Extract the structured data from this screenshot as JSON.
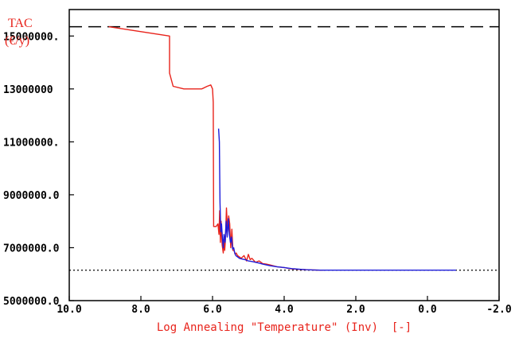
{
  "chart_data": {
    "type": "line",
    "title": "",
    "ylabel_line1": "TAC",
    "ylabel_line2": "(€/y)",
    "xlabel": "Log Annealing \"Temperature\" (Inv)  [-]",
    "xlim": [
      10.0,
      -2.0
    ],
    "ylim": [
      5000000,
      16000000
    ],
    "x_ticks": [
      {
        "value": 10.0,
        "label": "10.0"
      },
      {
        "value": 8.0,
        "label": "8.0"
      },
      {
        "value": 6.0,
        "label": "6.0"
      },
      {
        "value": 4.0,
        "label": "4.0"
      },
      {
        "value": 2.0,
        "label": "2.0"
      },
      {
        "value": 0.0,
        "label": "0.0"
      },
      {
        "value": -2.0,
        "label": "-2.0"
      }
    ],
    "y_ticks": [
      {
        "value": 5000000,
        "label": "5000000.0"
      },
      {
        "value": 7000000,
        "label": "7000000.0"
      },
      {
        "value": 9000000,
        "label": "9000000.0"
      },
      {
        "value": 11000000,
        "label": "11000000."
      },
      {
        "value": 13000000,
        "label": "13000000"
      },
      {
        "value": 15000000,
        "label": "15000000."
      }
    ],
    "reference_lines": [
      {
        "style": "long-dash",
        "y": 15350000
      },
      {
        "style": "dotted",
        "y": 6150000
      }
    ],
    "series": [
      {
        "color": "#e8231b",
        "x": [
          8.9,
          7.2,
          7.2,
          7.1,
          6.8,
          6.3,
          6.15,
          6.05,
          6.0,
          5.98,
          5.97,
          5.95,
          5.9,
          5.85,
          5.82,
          5.8,
          5.78,
          5.76,
          5.73,
          5.7,
          5.68,
          5.66,
          5.64,
          5.61,
          5.58,
          5.55,
          5.52,
          5.49,
          5.46,
          5.43,
          5.4,
          5.37,
          5.34,
          5.3,
          5.25,
          5.2,
          5.12,
          5.05,
          5.0,
          4.95,
          4.9,
          4.8,
          4.7,
          4.6,
          4.5,
          4.4,
          4.2,
          4.0,
          3.8,
          3.6,
          3.4,
          3.2,
          3.0,
          2.9
        ],
        "y": [
          15350000,
          15000000,
          13600000,
          13100000,
          13000000,
          13000000,
          13100000,
          13150000,
          13000000,
          12500000,
          7800000,
          7800000,
          7800000,
          7900000,
          7500000,
          8400000,
          7200000,
          8000000,
          7100000,
          6800000,
          7300000,
          6900000,
          7300000,
          8500000,
          7600000,
          8200000,
          7900000,
          7000000,
          7700000,
          6900000,
          6900000,
          6750000,
          6800000,
          6700000,
          6650000,
          6600000,
          6700000,
          6500000,
          6750000,
          6550000,
          6600000,
          6450000,
          6500000,
          6400000,
          6380000,
          6350000,
          6280000,
          6250000,
          6200000,
          6180000,
          6170000,
          6160000,
          6150000,
          6150000
        ]
      },
      {
        "color": "#1d1ddb",
        "x": [
          5.83,
          5.81,
          5.79,
          5.77,
          5.75,
          5.72,
          5.7,
          5.68,
          5.65,
          5.62,
          5.59,
          5.56,
          5.53,
          5.5,
          5.47,
          5.44,
          5.41,
          5.38,
          5.35,
          5.3,
          5.25,
          5.2,
          5.1,
          5.0,
          4.9,
          4.8,
          4.7,
          4.6,
          4.5,
          4.4,
          4.2,
          4.0,
          3.8,
          3.6,
          3.4,
          3.2,
          3.0,
          2.5,
          2.0,
          1.5,
          1.0,
          0.5,
          0.0,
          -0.5,
          -0.8
        ],
        "y": [
          11500000,
          11000000,
          8700000,
          7600000,
          7900000,
          7300000,
          7000000,
          7500000,
          7200000,
          8000000,
          7400000,
          8100000,
          7500000,
          7200000,
          7400000,
          6950000,
          7000000,
          6800000,
          6700000,
          6650000,
          6600000,
          6580000,
          6550000,
          6500000,
          6480000,
          6450000,
          6420000,
          6380000,
          6350000,
          6320000,
          6280000,
          6250000,
          6210000,
          6190000,
          6170000,
          6160000,
          6150000,
          6150000,
          6150000,
          6150000,
          6150000,
          6150000,
          6150000,
          6150000,
          6150000
        ]
      }
    ]
  }
}
